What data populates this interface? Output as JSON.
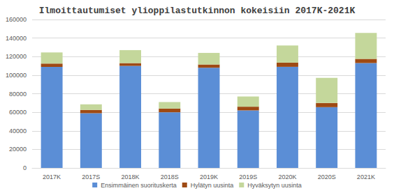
{
  "chart_data": {
    "type": "bar",
    "stacked": true,
    "title": "Ilmoittautumiset ylioppilastutkinnon kokeisiin 2017K-2021K",
    "categories": [
      "2017K",
      "2017S",
      "2018K",
      "2018S",
      "2019K",
      "2019S",
      "2020K",
      "2020S",
      "2021K"
    ],
    "series": [
      {
        "name": "Ensimmäinen suorituskerta",
        "color": "#5b8ed6",
        "values": [
          109000,
          59000,
          110000,
          60000,
          108000,
          62000,
          109000,
          65500,
          113000
        ]
      },
      {
        "name": "Hylätyn uusinta",
        "color": "#9e4a14",
        "values": [
          3500,
          3500,
          3000,
          4000,
          3500,
          4000,
          4500,
          4500,
          4500
        ]
      },
      {
        "name": "Hyväksytyn uusinta",
        "color": "#c4d79b",
        "values": [
          12000,
          6000,
          14000,
          7000,
          12500,
          11000,
          18500,
          27000,
          28000
        ]
      }
    ],
    "ylim": [
      0,
      160000
    ],
    "yticks": [
      0,
      20000,
      40000,
      60000,
      80000,
      100000,
      120000,
      140000,
      160000
    ],
    "grid": true,
    "legend": "bottom"
  }
}
